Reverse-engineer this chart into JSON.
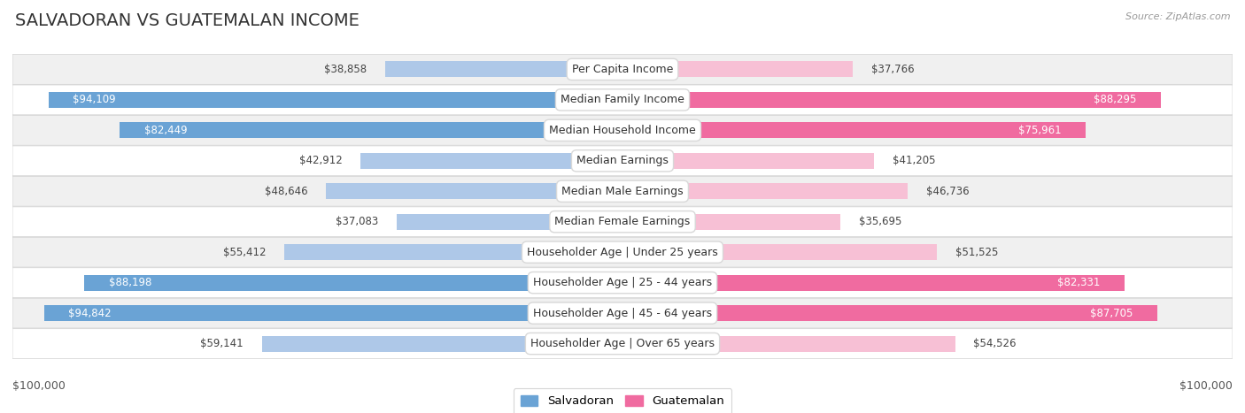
{
  "title": "SALVADORAN VS GUATEMALAN INCOME",
  "source": "Source: ZipAtlas.com",
  "categories": [
    "Per Capita Income",
    "Median Family Income",
    "Median Household Income",
    "Median Earnings",
    "Median Male Earnings",
    "Median Female Earnings",
    "Householder Age | Under 25 years",
    "Householder Age | 25 - 44 years",
    "Householder Age | 45 - 64 years",
    "Householder Age | Over 65 years"
  ],
  "salvadoran_values": [
    38858,
    94109,
    82449,
    42912,
    48646,
    37083,
    55412,
    88198,
    94842,
    59141
  ],
  "guatemalan_values": [
    37766,
    88295,
    75961,
    41205,
    46736,
    35695,
    51525,
    82331,
    87705,
    54526
  ],
  "salvadoran_labels": [
    "$38,858",
    "$94,109",
    "$82,449",
    "$42,912",
    "$48,646",
    "$37,083",
    "$55,412",
    "$88,198",
    "$94,842",
    "$59,141"
  ],
  "guatemalan_labels": [
    "$37,766",
    "$88,295",
    "$75,961",
    "$41,205",
    "$46,736",
    "$35,695",
    "$51,525",
    "$82,331",
    "$87,705",
    "$54,526"
  ],
  "max_value": 100000,
  "salvadoran_color_light": "#aec8e8",
  "salvadoran_color_dark": "#6aa3d5",
  "guatemalan_color_light": "#f7c0d5",
  "guatemalan_color_dark": "#f06ba0",
  "row_bg_odd": "#f0f0f0",
  "row_bg_even": "#ffffff",
  "bar_height": 0.52,
  "inside_label_threshold": 75000,
  "legend_salvadoran": "Salvadoran",
  "legend_guatemalan": "Guatemalan",
  "xlabel_left": "$100,000",
  "xlabel_right": "$100,000",
  "title_fontsize": 14,
  "label_fontsize": 8.5,
  "cat_fontsize": 9,
  "axis_label_fontsize": 9
}
